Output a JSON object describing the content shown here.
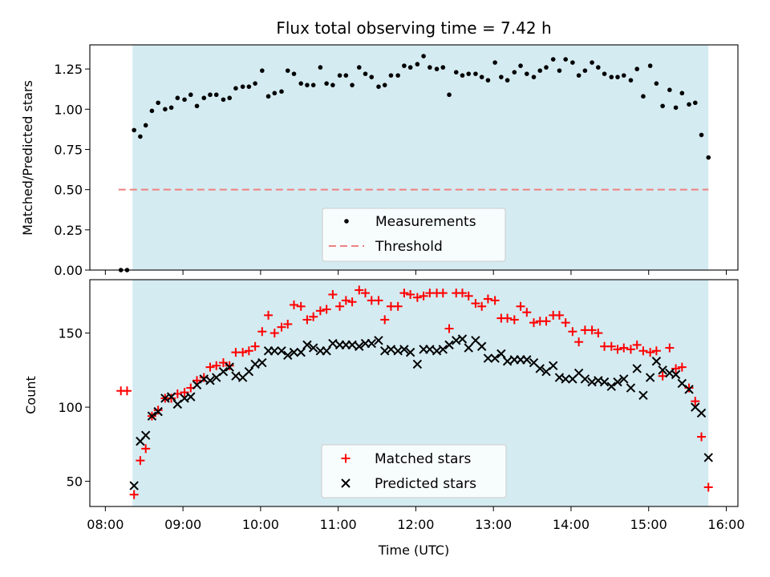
{
  "colors": {
    "shade": "#d4ebf1",
    "measurement": "#000000",
    "threshold": "#f08080",
    "matched": "#ff0000",
    "predicted": "#000000",
    "axis": "#000000"
  },
  "chart_data": [
    {
      "type": "scatter",
      "title": "Flux total observing time = 7.42 h",
      "xlabel": "",
      "ylabel": "Matched/Predicted stars",
      "xlim": [
        7.8,
        16.15
      ],
      "ylim": [
        0.0,
        1.4
      ],
      "yticks": [
        0.0,
        0.25,
        0.5,
        0.75,
        1.0,
        1.25
      ],
      "ytick_labels": [
        "0.00",
        "0.25",
        "0.50",
        "0.75",
        "1.00",
        "1.25"
      ],
      "shaded_interval": [
        8.35,
        15.77
      ],
      "threshold": {
        "value": 0.5,
        "x_range": [
          8.17,
          15.77
        ],
        "label": "Threshold"
      },
      "legend": {
        "position": "bottom-center",
        "entries": [
          "Measurements",
          "Threshold"
        ]
      },
      "series": [
        {
          "name": "Measurements",
          "x": [
            8.2,
            8.28,
            8.37,
            8.45,
            8.52,
            8.6,
            8.68,
            8.77,
            8.85,
            8.93,
            9.02,
            9.1,
            9.18,
            9.27,
            9.35,
            9.43,
            9.52,
            9.6,
            9.68,
            9.77,
            9.85,
            9.93,
            10.02,
            10.1,
            10.18,
            10.27,
            10.35,
            10.43,
            10.52,
            10.6,
            10.68,
            10.77,
            10.85,
            10.93,
            11.02,
            11.1,
            11.18,
            11.27,
            11.35,
            11.43,
            11.52,
            11.6,
            11.68,
            11.77,
            11.85,
            11.93,
            12.02,
            12.1,
            12.18,
            12.27,
            12.35,
            12.43,
            12.52,
            12.6,
            12.68,
            12.77,
            12.85,
            12.93,
            13.02,
            13.1,
            13.18,
            13.27,
            13.35,
            13.43,
            13.52,
            13.6,
            13.68,
            13.77,
            13.85,
            13.93,
            14.02,
            14.1,
            14.18,
            14.27,
            14.35,
            14.43,
            14.52,
            14.6,
            14.68,
            14.77,
            14.85,
            14.93,
            15.02,
            15.1,
            15.18,
            15.27,
            15.35,
            15.43,
            15.52,
            15.6,
            15.68,
            15.77
          ],
          "y": [
            0.0,
            0.0,
            0.87,
            0.83,
            0.9,
            0.99,
            1.04,
            1.0,
            1.01,
            1.07,
            1.06,
            1.09,
            1.02,
            1.07,
            1.09,
            1.09,
            1.06,
            1.07,
            1.13,
            1.14,
            1.14,
            1.16,
            1.24,
            1.08,
            1.1,
            1.11,
            1.24,
            1.22,
            1.16,
            1.15,
            1.15,
            1.26,
            1.16,
            1.15,
            1.21,
            1.21,
            1.15,
            1.26,
            1.22,
            1.2,
            1.14,
            1.15,
            1.21,
            1.21,
            1.27,
            1.26,
            1.28,
            1.33,
            1.26,
            1.25,
            1.26,
            1.09,
            1.23,
            1.21,
            1.22,
            1.22,
            1.2,
            1.18,
            1.29,
            1.2,
            1.18,
            1.23,
            1.27,
            1.22,
            1.2,
            1.24,
            1.26,
            1.31,
            1.24,
            1.31,
            1.29,
            1.21,
            1.24,
            1.29,
            1.26,
            1.22,
            1.2,
            1.2,
            1.21,
            1.18,
            1.25,
            1.08,
            1.27,
            1.16,
            1.02,
            1.12,
            1.01,
            1.1,
            1.03,
            1.04,
            0.84,
            0.7
          ]
        }
      ]
    },
    {
      "type": "scatter",
      "title": "",
      "xlabel": "Time (UTC)",
      "ylabel": "Count",
      "xlim": [
        7.8,
        16.15
      ],
      "ylim": [
        33,
        186
      ],
      "yticks": [
        50,
        100,
        150
      ],
      "ytick_labels": [
        "50",
        "100",
        "150"
      ],
      "xticks": [
        8,
        9,
        10,
        11,
        12,
        13,
        14,
        15,
        16
      ],
      "xtick_labels": [
        "08:00",
        "09:00",
        "10:00",
        "11:00",
        "12:00",
        "13:00",
        "14:00",
        "15:00",
        "16:00"
      ],
      "shaded_interval": [
        8.35,
        15.77
      ],
      "legend": {
        "position": "bottom-center",
        "entries": [
          "Matched stars",
          "Predicted stars"
        ]
      },
      "series": [
        {
          "name": "Matched stars",
          "marker": "plus",
          "x": [
            8.2,
            8.28,
            8.37,
            8.45,
            8.52,
            8.6,
            8.68,
            8.77,
            8.85,
            8.93,
            9.02,
            9.1,
            9.18,
            9.27,
            9.35,
            9.43,
            9.52,
            9.6,
            9.68,
            9.77,
            9.85,
            9.93,
            10.02,
            10.1,
            10.18,
            10.27,
            10.35,
            10.43,
            10.52,
            10.6,
            10.68,
            10.77,
            10.85,
            10.93,
            11.02,
            11.1,
            11.18,
            11.27,
            11.35,
            11.43,
            11.52,
            11.6,
            11.68,
            11.77,
            11.85,
            11.93,
            12.02,
            12.1,
            12.18,
            12.27,
            12.35,
            12.43,
            12.52,
            12.6,
            12.68,
            12.77,
            12.85,
            12.93,
            13.02,
            13.1,
            13.18,
            13.27,
            13.35,
            13.43,
            13.52,
            13.6,
            13.68,
            13.77,
            13.85,
            13.93,
            14.02,
            14.1,
            14.18,
            14.27,
            14.35,
            14.43,
            14.52,
            14.6,
            14.68,
            14.77,
            14.85,
            14.93,
            15.02,
            15.1,
            15.18,
            15.27,
            15.35,
            15.43,
            15.52,
            15.6,
            15.68,
            15.77
          ],
          "y": [
            111,
            111,
            41,
            64,
            72,
            94,
            98,
            106,
            106,
            109,
            110,
            113,
            118,
            120,
            127,
            128,
            130,
            128,
            137,
            137,
            138,
            141,
            151,
            162,
            150,
            154,
            156,
            169,
            168,
            159,
            161,
            165,
            166,
            176,
            168,
            172,
            171,
            179,
            177,
            172,
            172,
            159,
            168,
            168,
            177,
            176,
            174,
            175,
            177,
            177,
            177,
            153,
            177,
            177,
            175,
            170,
            168,
            173,
            172,
            160,
            160,
            159,
            168,
            164,
            157,
            158,
            158,
            162,
            162,
            157,
            151,
            144,
            152,
            152,
            150,
            141,
            141,
            139,
            140,
            139,
            142,
            138,
            137,
            138,
            121,
            140,
            126,
            127,
            113,
            104,
            80,
            46
          ]
        },
        {
          "name": "Predicted stars",
          "marker": "x",
          "x": [
            8.37,
            8.45,
            8.52,
            8.6,
            8.68,
            8.77,
            8.85,
            8.93,
            9.02,
            9.1,
            9.18,
            9.27,
            9.35,
            9.43,
            9.52,
            9.6,
            9.68,
            9.77,
            9.85,
            9.93,
            10.02,
            10.1,
            10.18,
            10.27,
            10.35,
            10.43,
            10.52,
            10.6,
            10.68,
            10.77,
            10.85,
            10.93,
            11.02,
            11.1,
            11.18,
            11.27,
            11.35,
            11.43,
            11.52,
            11.6,
            11.68,
            11.77,
            11.85,
            11.93,
            12.02,
            12.1,
            12.18,
            12.27,
            12.35,
            12.43,
            12.52,
            12.6,
            12.68,
            12.77,
            12.85,
            12.93,
            13.02,
            13.1,
            13.18,
            13.27,
            13.35,
            13.43,
            13.52,
            13.6,
            13.68,
            13.77,
            13.85,
            13.93,
            14.02,
            14.1,
            14.18,
            14.27,
            14.35,
            14.43,
            14.52,
            14.6,
            14.68,
            14.77,
            14.85,
            14.93,
            15.02,
            15.1,
            15.18,
            15.27,
            15.35,
            15.43,
            15.52,
            15.6,
            15.68,
            15.77
          ],
          "y": [
            47,
            77,
            81,
            94,
            97,
            106,
            107,
            102,
            106,
            107,
            115,
            119,
            118,
            120,
            124,
            127,
            121,
            120,
            124,
            129,
            130,
            138,
            138,
            138,
            135,
            137,
            137,
            142,
            140,
            138,
            138,
            143,
            142,
            142,
            142,
            141,
            143,
            143,
            145,
            138,
            139,
            138,
            139,
            137,
            129,
            139,
            139,
            138,
            139,
            142,
            145,
            146,
            140,
            145,
            141,
            133,
            133,
            136,
            131,
            132,
            132,
            132,
            130,
            126,
            124,
            128,
            120,
            119,
            119,
            123,
            119,
            117,
            118,
            117,
            114,
            117,
            119,
            113,
            126,
            108,
            120,
            131,
            125,
            123,
            122,
            116,
            112,
            100,
            96,
            66
          ]
        }
      ]
    }
  ]
}
